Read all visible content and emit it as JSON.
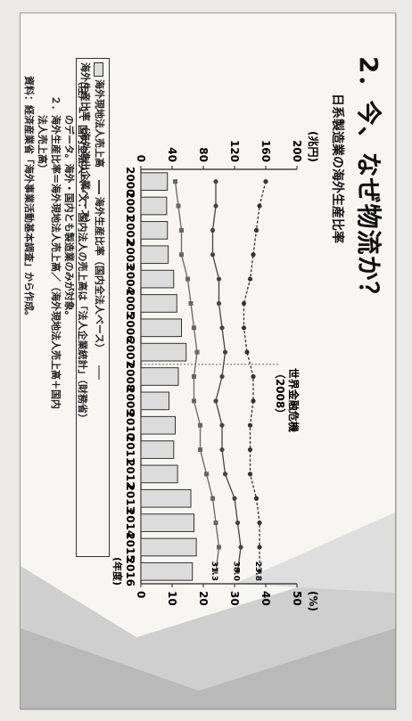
{
  "slide": {
    "title": "2．今、なぜ物流か？",
    "subtitle": "日系製造業の海外生産比率"
  },
  "chart_data": {
    "type": "bar",
    "categories": [
      "2000",
      "2001",
      "2002",
      "2003",
      "2004",
      "2005",
      "2006",
      "2007",
      "2008",
      "2009",
      "2010",
      "2011",
      "2012",
      "2013",
      "2014",
      "2015",
      "2016"
    ],
    "xlabel": "(年度)",
    "y_left": {
      "label": "(兆円)",
      "ticks": [
        0,
        40,
        80,
        120,
        160,
        200
      ],
      "ylim": [
        0,
        200
      ]
    },
    "y_right": {
      "label": "(%)",
      "ticks": [
        0,
        10,
        20,
        30,
        40,
        50
      ],
      "ylim": [
        0,
        50
      ]
    },
    "series": [
      {
        "kind": "bar",
        "values": [
          34,
          33,
          34,
          35,
          42,
          46,
          52,
          58,
          48,
          36,
          44,
          42,
          47,
          64,
          68,
          71,
          66
        ]
      },
      {
        "kind": "line",
        "axis": "right",
        "values": [
          24,
          24,
          23,
          23,
          25,
          25,
          26,
          27,
          26,
          24,
          26,
          26,
          27,
          30,
          31,
          32,
          31
        ]
      },
      {
        "kind": "line",
        "axis": "right",
        "values": [
          11,
          12,
          13,
          13,
          15,
          16,
          17,
          18,
          17,
          17,
          19,
          19,
          21,
          23,
          24,
          25,
          24
        ]
      },
      {
        "kind": "line",
        "axis": "right",
        "values": [
          40,
          38,
          37,
          36,
          35,
          33,
          33,
          34,
          36,
          36,
          35,
          35,
          35,
          37,
          38,
          38,
          38
        ]
      }
    ],
    "annotations": [
      {
        "text": "世界金融危機",
        "x": "2007"
      },
      {
        "text": "（2008）",
        "x": "2007"
      }
    ],
    "end_labels": [
      "38.0",
      "31.3",
      "23.8"
    ]
  },
  "legend": {
    "bar_label": "海外現地法人売上高",
    "line1_label": "海外生産比率（国内全法人ベース）",
    "line2_label": "海外生産比率（海外進出企業ベース）"
  },
  "notes": [
    "（注）１．国内全法人ベース：国内法人の売上高は「法人企業統計」（財務省）",
    "　　　　のデータ。海外・国内とも製造業のみが対象。",
    "　　２．海外生産比率＝海外現地法人売上高／（海外現地法人売上高＋国内",
    "　　　　法人売上高）",
    "資料：経済産業省「海外事業活動基本調査」から作成。"
  ]
}
